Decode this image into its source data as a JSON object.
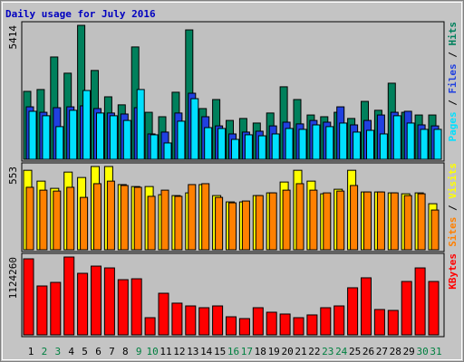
{
  "chart_data": [
    {
      "type": "bar",
      "title": "Daily usage for July 2016",
      "ylim": [
        0,
        5414
      ],
      "yticks": [
        5414
      ],
      "legend_separator": " / ",
      "series": [
        {
          "name": "Hits",
          "color": "#00805c",
          "values": [
            2745,
            2820,
            4135,
            3480,
            5414,
            3590,
            2525,
            2200,
            4540,
            1900,
            1720,
            2710,
            5230,
            2050,
            2415,
            1570,
            1650,
            1465,
            1870,
            2930,
            2415,
            1790,
            1720,
            1900,
            1650,
            2340,
            1980,
            3075,
            1900,
            1790,
            1790
          ]
        },
        {
          "name": "Files",
          "color": "#2040e0",
          "values": [
            2120,
            1900,
            2085,
            2120,
            2160,
            2050,
            1870,
            1830,
            2085,
            1025,
            1100,
            1870,
            2670,
            1720,
            1350,
            1025,
            1100,
            1135,
            1350,
            1500,
            1430,
            1570,
            1500,
            2120,
            1390,
            1570,
            1790,
            1900,
            1940,
            1390,
            1350
          ]
        },
        {
          "name": "Pages",
          "color": "#00e0ff",
          "values": [
            1940,
            1760,
            1320,
            1980,
            2780,
            1870,
            1760,
            1570,
            2820,
            990,
            660,
            1540,
            2450,
            1280,
            1245,
            805,
            990,
            950,
            1025,
            1245,
            1210,
            1390,
            1320,
            1465,
            1100,
            1170,
            1025,
            1760,
            1465,
            1210,
            1210
          ]
        }
      ]
    },
    {
      "type": "bar",
      "ylim": [
        0,
        553
      ],
      "yticks": [
        553
      ],
      "legend_separator": " / ",
      "series": [
        {
          "name": "Visits",
          "color": "#ffff00",
          "values": [
            528,
            456,
            408,
            516,
            480,
            553,
            553,
            433,
            420,
            420,
            366,
            360,
            378,
            433,
            360,
            318,
            318,
            360,
            378,
            450,
            528,
            456,
            372,
            402,
            528,
            384,
            384,
            378,
            372,
            378,
            306
          ]
        },
        {
          "name": "Sites",
          "color": "#ff8000",
          "values": [
            415,
            396,
            390,
            415,
            348,
            439,
            456,
            427,
            415,
            355,
            396,
            355,
            433,
            439,
            348,
            312,
            324,
            360,
            378,
            396,
            439,
            396,
            378,
            390,
            427,
            384,
            384,
            378,
            360,
            372,
            264
          ]
        }
      ]
    },
    {
      "type": "bar",
      "ylim": [
        0,
        1124260
      ],
      "yticks": [
        1124260
      ],
      "categories": [
        "1",
        "2",
        "3",
        "4",
        "5",
        "6",
        "7",
        "8",
        "9",
        "10",
        "11",
        "12",
        "13",
        "14",
        "15",
        "16",
        "17",
        "18",
        "19",
        "20",
        "21",
        "22",
        "23",
        "24",
        "25",
        "26",
        "27",
        "28",
        "29",
        "30",
        "31"
      ],
      "category_colors": [
        "#000000",
        "#008040",
        "#008040",
        "#000000",
        "#000000",
        "#000000",
        "#000000",
        "#000000",
        "#008040",
        "#008040",
        "#000000",
        "#000000",
        "#000000",
        "#000000",
        "#000000",
        "#008040",
        "#008040",
        "#000000",
        "#000000",
        "#000000",
        "#000000",
        "#000000",
        "#008040",
        "#008040",
        "#000000",
        "#000000",
        "#000000",
        "#000000",
        "#000000",
        "#008040",
        "#008040"
      ],
      "series": [
        {
          "name": "KBytes",
          "color": "#ff0000",
          "values": [
            1098000,
            706000,
            758000,
            1124260,
            889000,
            993000,
            967000,
            797000,
            810000,
            248000,
            601000,
            458000,
            418000,
            392000,
            418000,
            261000,
            235000,
            392000,
            327000,
            301000,
            248000,
            288000,
            392000,
            418000,
            680000,
            824000,
            366000,
            353000,
            771000,
            967000,
            771000
          ]
        }
      ]
    }
  ]
}
